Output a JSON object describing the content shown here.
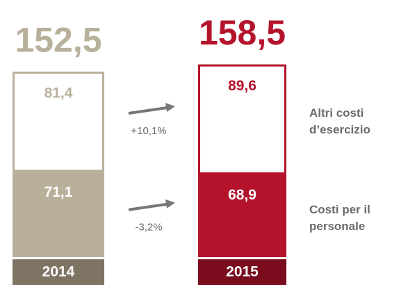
{
  "chart_data": {
    "type": "stacked_bar",
    "categories": [
      "2014",
      "2015"
    ],
    "category_colors": [
      "#b8b09a",
      "#b5132c"
    ],
    "category_band_colors": [
      "#7d7464",
      "#7a0c1e"
    ],
    "totals": [
      152.5,
      158.5
    ],
    "total_labels": [
      "152,5",
      "158,5"
    ],
    "series": [
      {
        "name": "Costi per il personale",
        "values": [
          71.1,
          68.9
        ],
        "value_labels": [
          "71,1",
          "68,9"
        ],
        "fill": "category",
        "change": "-3,2%"
      },
      {
        "name": "Altri costi d’esercizio",
        "values": [
          81.4,
          89.6
        ],
        "value_labels": [
          "81,4",
          "89,6"
        ],
        "fill": "white",
        "change": "+10,1%"
      }
    ]
  }
}
